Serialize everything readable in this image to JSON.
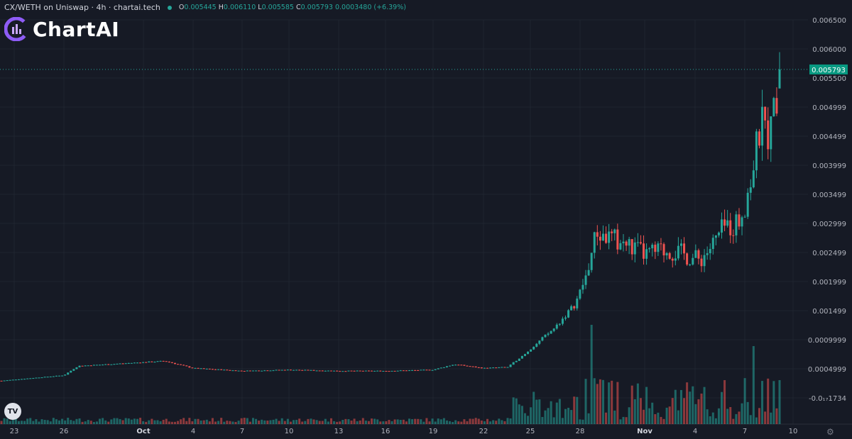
{
  "header": {
    "symbol": "CX/WETH on Uniswap · 4h · chartai.tech",
    "open_label": "O",
    "open": "0.005445",
    "high_label": "H",
    "high": "0.006110",
    "low_label": "L",
    "low": "0.005585",
    "close_label": "C",
    "close": "0.005793",
    "change": "0.0003480 (+6.39%)"
  },
  "logo": {
    "brand": "ChartAI",
    "icon": "chartai-logo-icon"
  },
  "badge": {
    "label": "TV",
    "icon": "tradingview-icon"
  },
  "settings_icon": "gear-icon",
  "colors": {
    "background": "#161a25",
    "up": "#26a69a",
    "down": "#ef5350",
    "price_label": "#089981",
    "grid": "#1f2430",
    "axis_text": "#b2b5be",
    "last_price_line": "#26a69a"
  },
  "chart_data": {
    "type": "candlestick",
    "title": "CX/WETH on Uniswap · 4h · chartai.tech",
    "ylim": [
      -0.0002,
      0.0067
    ],
    "y_ticks": [
      "0.006500",
      "0.006000",
      "0.005500",
      "0.004999",
      "0.004499",
      "0.003999",
      "0.003499",
      "0.002999",
      "0.002499",
      "0.001999",
      "0.001499",
      "0.0009999",
      "0.0004999",
      "-0.0₁₇1734"
    ],
    "x_ticks": [
      "23",
      "26",
      "Oct",
      "4",
      "7",
      "10",
      "13",
      "16",
      "19",
      "22",
      "25",
      "28",
      "Nov",
      "4",
      "7",
      "10"
    ],
    "bold_x_ticks": [
      "Oct",
      "Nov"
    ],
    "last_price": "0.005793",
    "series": [
      {
        "period": "Sep 23",
        "price": 0.0001
      },
      {
        "period": "Sep 26",
        "price": 0.0002
      },
      {
        "period": "Sep 27",
        "price": 0.00037
      },
      {
        "period": "Oct 1",
        "price": 0.00046
      },
      {
        "period": "Oct 4",
        "price": 0.00033
      },
      {
        "period": "Oct 7",
        "price": 0.00028
      },
      {
        "period": "Oct 10",
        "price": 0.0003
      },
      {
        "period": "Oct 13",
        "price": 0.00028
      },
      {
        "period": "Oct 16",
        "price": 0.00028
      },
      {
        "period": "Oct 19",
        "price": 0.0003
      },
      {
        "period": "Oct 20",
        "price": 0.0004
      },
      {
        "period": "Oct 22",
        "price": 0.00033
      },
      {
        "period": "Oct 24",
        "price": 0.00035
      },
      {
        "period": "Oct 25",
        "price": 0.0006
      },
      {
        "period": "Oct 26",
        "price": 0.00105
      },
      {
        "period": "Oct 27",
        "price": 0.0015
      },
      {
        "period": "Oct 28",
        "price": 0.002
      },
      {
        "period": "Oct 29",
        "price": 0.0028
      },
      {
        "period": "Oct 31",
        "price": 0.0026
      },
      {
        "period": "Nov 1",
        "price": 0.0024
      },
      {
        "period": "Nov 2",
        "price": 0.0025
      },
      {
        "period": "Nov 3",
        "price": 0.0024
      },
      {
        "period": "Nov 4",
        "price": 0.0023
      },
      {
        "period": "Nov 5",
        "price": 0.0026
      },
      {
        "period": "Nov 6",
        "price": 0.0029
      },
      {
        "period": "Nov 7",
        "price": 0.003
      },
      {
        "period": "Nov 7b",
        "price": 0.0036
      },
      {
        "period": "Nov 8",
        "price": 0.0048
      },
      {
        "period": "Nov 8b",
        "price": 0.0046
      },
      {
        "period": "Nov 9",
        "price": 0.005793
      }
    ]
  }
}
